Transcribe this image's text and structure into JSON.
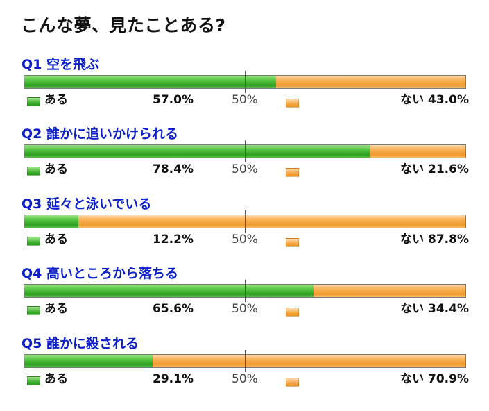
{
  "title": "こんな夢、見たことある?",
  "chart_data": {
    "type": "bar",
    "title": "こんな夢、見たことある?",
    "mid_label": "50%",
    "series": [
      {
        "name": "ある",
        "values": [
          57.0,
          78.4,
          12.2,
          65.6,
          29.1
        ]
      },
      {
        "name": "ない",
        "values": [
          43.0,
          21.6,
          87.8,
          34.4,
          70.9
        ]
      }
    ],
    "questions": [
      {
        "label": "Q1 空を飛ぶ",
        "yes": 57.0,
        "no": 43.0,
        "yes_text": "57.0%",
        "no_text": "43.0%"
      },
      {
        "label": "Q2 誰かに追いかけられる",
        "yes": 78.4,
        "no": 21.6,
        "yes_text": "78.4%",
        "no_text": "21.6%"
      },
      {
        "label": "Q3 延々と泳いでいる",
        "yes": 12.2,
        "no": 87.8,
        "yes_text": "12.2%",
        "no_text": "87.8%"
      },
      {
        "label": "Q4 高いところから落ちる",
        "yes": 65.6,
        "no": 34.4,
        "yes_text": "65.6%",
        "no_text": "34.4%"
      },
      {
        "label": "Q5 誰かに殺される",
        "yes": 29.1,
        "no": 70.9,
        "yes_text": "29.1%",
        "no_text": "70.9%"
      }
    ],
    "legend_yes": "ある",
    "legend_no": "ない",
    "colors": {
      "yes": "#3cb72b",
      "no": "#f5a23c",
      "question": "#0d20c8"
    }
  }
}
